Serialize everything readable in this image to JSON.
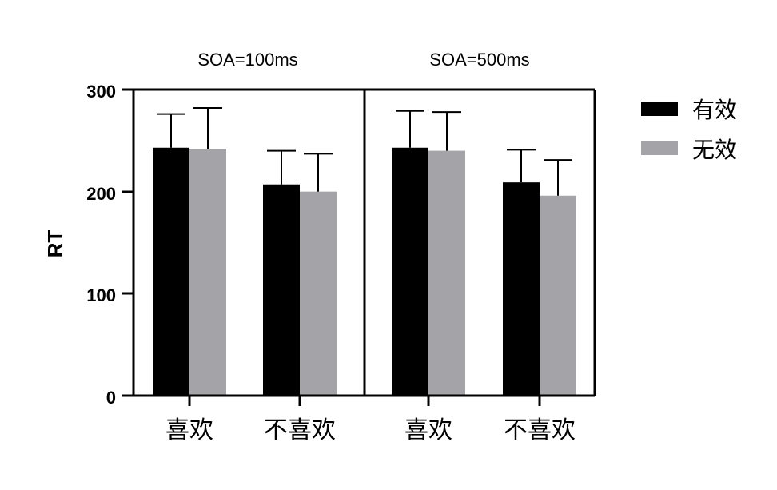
{
  "chart_data": {
    "type": "bar",
    "ylabel": "RT",
    "xlabel": "",
    "ylim": [
      0,
      300
    ],
    "yticks": [
      0,
      100,
      200,
      300
    ],
    "panels": [
      {
        "title": "SOA=100ms",
        "categories": [
          "喜欢",
          "不喜欢"
        ],
        "series": [
          {
            "name": "有效",
            "values": [
              243,
              207
            ],
            "errors": [
              33,
              33
            ]
          },
          {
            "name": "无效",
            "values": [
              242,
              200
            ],
            "errors": [
              40,
              37
            ]
          }
        ]
      },
      {
        "title": "SOA=500ms",
        "categories": [
          "喜欢",
          "不喜欢"
        ],
        "series": [
          {
            "name": "有效",
            "values": [
              243,
              209
            ],
            "errors": [
              36,
              32
            ]
          },
          {
            "name": "无效",
            "values": [
              240,
              196
            ],
            "errors": [
              38,
              35
            ]
          }
        ]
      }
    ],
    "legend": {
      "position": "top-right",
      "entries": [
        {
          "name": "有效",
          "color": "#000000"
        },
        {
          "name": "无效",
          "color": "#a4a4a8"
        }
      ]
    },
    "grid": false
  }
}
